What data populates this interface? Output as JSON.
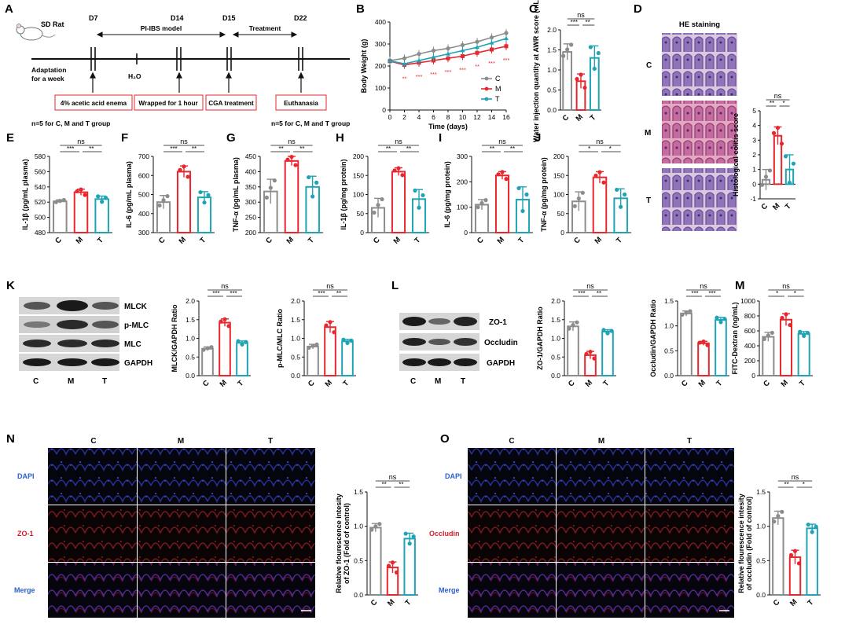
{
  "colors": {
    "C": "#8c8c8c",
    "M": "#e8262e",
    "T": "#1ea4b4"
  },
  "panel_letters": [
    "A",
    "B",
    "C",
    "D",
    "E",
    "F",
    "G",
    "H",
    "I",
    "J",
    "K",
    "L",
    "M",
    "N",
    "O"
  ],
  "timeline": {
    "species": "SD Rat",
    "days": [
      "D7",
      "D14",
      "D15",
      "D22"
    ],
    "model_label": "PI-IBS model",
    "treatment_label": "Treatment",
    "adaptation": [
      "Adaptation",
      "for a week"
    ],
    "water": "H₂O",
    "boxes": [
      "4% acetic acid enema",
      "Wrapped for 1 hour",
      "CGA treatment",
      "Euthanasia"
    ],
    "n_note_left": "n=5 for C, M and T group",
    "n_note_right": "n=5 for C, M and T group"
  },
  "he": {
    "title": "HE staining",
    "rows": [
      "C",
      "M",
      "T"
    ]
  },
  "blots": {
    "K": {
      "bands": [
        "MLCK",
        "p-MLC",
        "MLC",
        "GAPDH"
      ],
      "lanes": [
        "C",
        "M",
        "T"
      ]
    },
    "L": {
      "bands": [
        "ZO-1",
        "Occludin",
        "GAPDH"
      ],
      "lanes": [
        "C",
        "M",
        "T"
      ]
    }
  },
  "fluor": {
    "N": {
      "cols": [
        "C",
        "M",
        "T"
      ],
      "rows": [
        "DAPI",
        "ZO-1",
        "Merge"
      ]
    },
    "O": {
      "cols": [
        "C",
        "M",
        "T"
      ],
      "rows": [
        "DAPI",
        "Occludin",
        "Merge"
      ]
    }
  },
  "chart_data": [
    {
      "panel": "B",
      "type": "line",
      "x": [
        0,
        2,
        4,
        6,
        8,
        10,
        12,
        14,
        16
      ],
      "xlabel": "Time (days)",
      "ylabel": "Body Weight (g)",
      "ylim": [
        0,
        400
      ],
      "yticks": [
        0,
        100,
        200,
        300,
        400
      ],
      "series": [
        {
          "name": "C",
          "values": [
            225,
            235,
            255,
            270,
            280,
            295,
            310,
            330,
            350
          ]
        },
        {
          "name": "M",
          "values": [
            222,
            205,
            215,
            225,
            235,
            245,
            260,
            275,
            290
          ]
        },
        {
          "name": "T",
          "values": [
            224,
            210,
            225,
            240,
            255,
            270,
            285,
            305,
            325
          ]
        }
      ],
      "legend": "right",
      "sig": [
        "**",
        "***",
        "***",
        "***",
        "***",
        "**",
        "***",
        "***"
      ]
    },
    {
      "panel": "C",
      "type": "bar",
      "categories": [
        "C",
        "M",
        "T"
      ],
      "values": [
        1.45,
        0.72,
        1.3
      ],
      "errors": [
        0.2,
        0.18,
        0.3
      ],
      "ylabel": "Water injection quantity at AWR score (mL)",
      "ylim": [
        0,
        2.0
      ],
      "yticks": [
        0.0,
        0.5,
        1.0,
        1.5,
        2.0
      ],
      "sig": [
        "***",
        "**",
        "ns"
      ]
    },
    {
      "panel": "D",
      "type": "bar",
      "categories": [
        "C",
        "M",
        "T"
      ],
      "values": [
        0.3,
        3.3,
        1.0
      ],
      "errors": [
        0.7,
        0.6,
        1.0
      ],
      "ylabel": "Histological colitis score",
      "ylim": [
        -1,
        5
      ],
      "yticks": [
        -1,
        0,
        1,
        2,
        3,
        4,
        5
      ],
      "sig": [
        "**",
        "*",
        "ns"
      ]
    },
    {
      "panel": "E",
      "type": "bar",
      "categories": [
        "C",
        "M",
        "T"
      ],
      "values": [
        521,
        533,
        524
      ],
      "errors": [
        2,
        4,
        4
      ],
      "ylabel": "IL-1β (pg/mL plasma)",
      "ylim": [
        480,
        580
      ],
      "yticks": [
        480,
        500,
        520,
        540,
        560,
        580
      ],
      "sig": [
        "***",
        "**",
        "ns"
      ]
    },
    {
      "panel": "F",
      "type": "bar",
      "categories": [
        "C",
        "M",
        "T"
      ],
      "values": [
        460,
        620,
        485
      ],
      "errors": [
        35,
        30,
        30
      ],
      "ylabel": "IL-6 (pg/mL plasma)",
      "ylim": [
        300,
        700
      ],
      "yticks": [
        300,
        400,
        500,
        600,
        700
      ],
      "sig": [
        "***",
        "**",
        "ns"
      ]
    },
    {
      "panel": "G",
      "type": "bar",
      "categories": [
        "C",
        "M",
        "T"
      ],
      "values": [
        335,
        435,
        350
      ],
      "errors": [
        40,
        15,
        35
      ],
      "ylabel": "TNF-α (pg/mL plasma)",
      "ylim": [
        200,
        450
      ],
      "yticks": [
        200,
        250,
        300,
        350,
        400,
        450
      ],
      "sig": [
        "**",
        "**",
        "ns"
      ]
    },
    {
      "panel": "H",
      "type": "bar",
      "categories": [
        "C",
        "M",
        "T"
      ],
      "values": [
        65,
        160,
        88
      ],
      "errors": [
        25,
        10,
        25
      ],
      "ylabel": "IL-1β (pg/mg protein)",
      "ylim": [
        0,
        200
      ],
      "yticks": [
        0,
        50,
        100,
        150,
        200
      ],
      "sig": [
        "**",
        "**",
        "ns"
      ]
    },
    {
      "panel": "I",
      "type": "bar",
      "categories": [
        "C",
        "M",
        "T"
      ],
      "values": [
        110,
        225,
        130
      ],
      "errors": [
        20,
        15,
        50
      ],
      "ylabel": "IL-6 (pg/mg protein)",
      "ylim": [
        0,
        300
      ],
      "yticks": [
        0,
        100,
        200,
        300
      ],
      "sig": [
        "**",
        "**",
        "ns"
      ]
    },
    {
      "panel": "J",
      "type": "bar",
      "categories": [
        "C",
        "M",
        "T"
      ],
      "values": [
        82,
        145,
        90
      ],
      "errors": [
        25,
        15,
        25
      ],
      "ylabel": "TNF-α (pg/mg protein)",
      "ylim": [
        0,
        200
      ],
      "yticks": [
        0,
        50,
        100,
        150,
        200
      ],
      "sig": [
        "*",
        "*",
        "ns"
      ]
    },
    {
      "panel": "K1",
      "type": "bar",
      "categories": [
        "C",
        "M",
        "T"
      ],
      "values": [
        0.72,
        1.42,
        0.88
      ],
      "errors": [
        0.05,
        0.1,
        0.05
      ],
      "ylabel": "MLCK/GAPDH Ratio",
      "ylim": [
        0,
        2.0
      ],
      "yticks": [
        0.0,
        0.5,
        1.0,
        1.5,
        2.0
      ],
      "sig": [
        "***",
        "***",
        "ns"
      ]
    },
    {
      "panel": "K2",
      "type": "bar",
      "categories": [
        "C",
        "M",
        "T"
      ],
      "values": [
        0.78,
        1.3,
        0.92
      ],
      "errors": [
        0.06,
        0.15,
        0.05
      ],
      "ylabel": "p-MLC/MLC Ratio",
      "ylim": [
        0,
        2.0
      ],
      "yticks": [
        0.0,
        0.5,
        1.0,
        1.5,
        2.0
      ],
      "sig": [
        "***",
        "**",
        "ns"
      ]
    },
    {
      "panel": "L1",
      "type": "bar",
      "categories": [
        "C",
        "M",
        "T"
      ],
      "values": [
        1.32,
        0.55,
        1.18
      ],
      "errors": [
        0.12,
        0.1,
        0.05
      ],
      "ylabel": "ZO-1/GAPDH Ratio",
      "ylim": [
        0,
        2.0
      ],
      "yticks": [
        0.0,
        0.5,
        1.0,
        1.5,
        2.0
      ],
      "sig": [
        "***",
        "**",
        "ns"
      ]
    },
    {
      "panel": "L2",
      "type": "bar",
      "categories": [
        "C",
        "M",
        "T"
      ],
      "values": [
        1.25,
        0.65,
        1.12
      ],
      "errors": [
        0.05,
        0.04,
        0.05
      ],
      "ylabel": "Occludin/GAPDH Ratio",
      "ylim": [
        0,
        1.5
      ],
      "yticks": [
        0.0,
        0.5,
        1.0,
        1.5
      ],
      "sig": [
        "***",
        "***",
        "ns"
      ]
    },
    {
      "panel": "M",
      "type": "bar",
      "categories": [
        "C",
        "M",
        "T"
      ],
      "values": [
        520,
        750,
        560
      ],
      "errors": [
        60,
        80,
        30
      ],
      "ylabel": "FITC-Dextran (ng/mL)",
      "ylim": [
        0,
        1000
      ],
      "yticks": [
        0,
        200,
        400,
        600,
        800,
        1000
      ],
      "sig": [
        "*",
        "*",
        "ns"
      ]
    },
    {
      "panel": "N",
      "type": "bar",
      "categories": [
        "C",
        "M",
        "T"
      ],
      "values": [
        0.98,
        0.4,
        0.82
      ],
      "errors": [
        0.06,
        0.08,
        0.08
      ],
      "ylabel": "Relative flourescence intesity of ZO-1 (Fold of control)",
      "ylim": [
        0,
        1.5
      ],
      "yticks": [
        0.0,
        0.5,
        1.0,
        1.5
      ],
      "sig": [
        "**",
        "**",
        "ns"
      ]
    },
    {
      "panel": "O",
      "type": "bar",
      "categories": [
        "C",
        "M",
        "T"
      ],
      "values": [
        1.12,
        0.55,
        0.97
      ],
      "errors": [
        0.1,
        0.1,
        0.06
      ],
      "ylabel": "Relative flourescence intesity of occludin (Fold of control)",
      "ylim": [
        0,
        1.5
      ],
      "yticks": [
        0.0,
        0.5,
        1.0,
        1.5
      ],
      "sig": [
        "**",
        "*",
        "ns"
      ]
    }
  ]
}
